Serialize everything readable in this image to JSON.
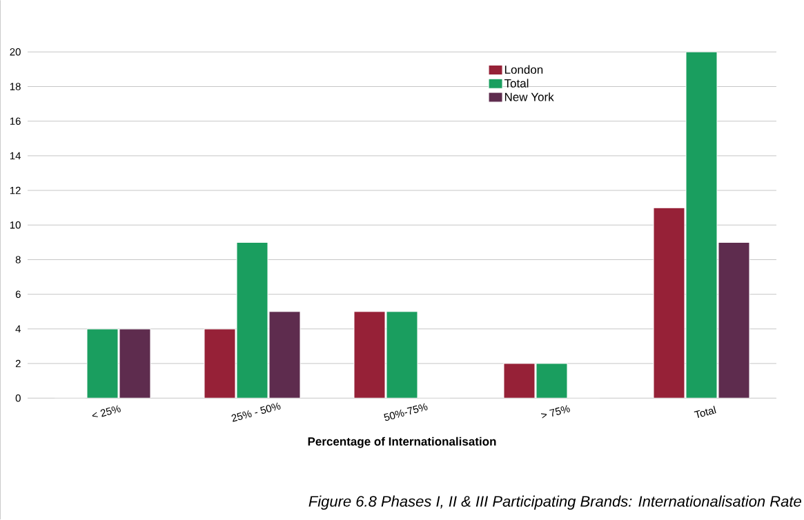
{
  "chart_data": {
    "type": "bar",
    "xlabel": "Percentage of Internationalisation",
    "categories": [
      "< 25%",
      "25% - 50%",
      "50%-75%",
      "> 75%",
      "Total"
    ],
    "series": [
      {
        "name": "London",
        "color": "#962137",
        "values": [
          0,
          4,
          5,
          2,
          11
        ]
      },
      {
        "name": "Total",
        "color": "#1a9e5f",
        "values": [
          4,
          9,
          5,
          2,
          20
        ]
      },
      {
        "name": "New York",
        "color": "#5e2c4e",
        "values": [
          4,
          5,
          0,
          0,
          9
        ]
      }
    ],
    "ylim": [
      0,
      20
    ],
    "yticks": [
      0,
      2,
      4,
      6,
      8,
      10,
      12,
      14,
      16,
      18,
      20
    ],
    "grid": "y",
    "legend": "top",
    "annotations": [
      "Figure 6.8 Phases I, II & III Participating Brands: Internationalisation Rate"
    ]
  }
}
